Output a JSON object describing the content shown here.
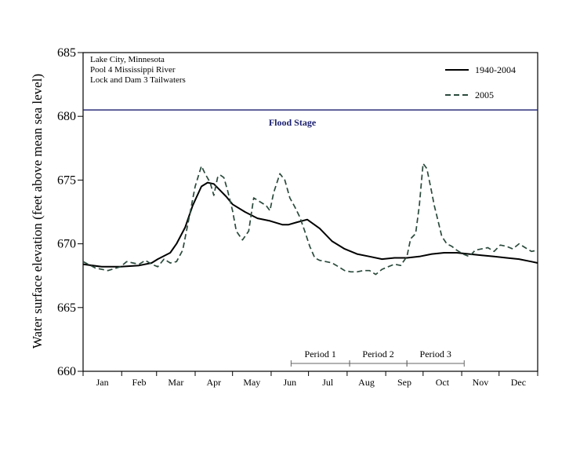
{
  "chart_data": {
    "type": "line",
    "ylabel": "Water surface elevation (feet above mean sea level)",
    "xlabel": "",
    "ylim": [
      660,
      685
    ],
    "yticks": [
      660,
      665,
      670,
      675,
      680,
      685
    ],
    "x_months": [
      "Jan",
      "Feb",
      "Mar",
      "Apr",
      "May",
      "Jun",
      "Jul",
      "Aug",
      "Sep",
      "Oct",
      "Nov",
      "Dec"
    ],
    "xlim_days": [
      0,
      365
    ],
    "grid": false,
    "legend_position": "top-right",
    "info_text": [
      "Lake City, Minnesota",
      "Pool 4 Mississippi River",
      "Lock and Dam 3 Tailwaters"
    ],
    "flood_stage": {
      "value": 680.5,
      "label": "Flood Stage",
      "color": "#1a1f6e"
    },
    "periods": [
      {
        "label": "Period 1",
        "start_day": 167,
        "end_day": 214
      },
      {
        "label": "Period 2",
        "start_day": 214,
        "end_day": 260
      },
      {
        "label": "Period 3",
        "start_day": 260,
        "end_day": 306
      }
    ],
    "series": [
      {
        "name": "1940-2004",
        "color": "#000000",
        "dash": "solid",
        "x": [
          0,
          15,
          30,
          45,
          55,
          60,
          70,
          75,
          82,
          88,
          95,
          100,
          105,
          110,
          115,
          120,
          130,
          140,
          150,
          160,
          165,
          172,
          180,
          190,
          200,
          210,
          220,
          230,
          240,
          250,
          260,
          270,
          280,
          290,
          300,
          310,
          320,
          330,
          340,
          350,
          360,
          365
        ],
        "values": [
          668.4,
          668.2,
          668.2,
          668.3,
          668.5,
          668.8,
          669.3,
          670.0,
          671.3,
          673.0,
          674.5,
          674.8,
          674.7,
          674.2,
          673.7,
          673.1,
          672.5,
          672.0,
          671.8,
          671.5,
          671.5,
          671.7,
          671.9,
          671.2,
          670.2,
          669.6,
          669.2,
          669.0,
          668.8,
          668.9,
          668.9,
          669.0,
          669.2,
          669.3,
          669.3,
          669.2,
          669.1,
          669.0,
          668.9,
          668.8,
          668.6,
          668.5
        ]
      },
      {
        "name": "2005",
        "color": "#2a4a3c",
        "dash": "dashed",
        "x": [
          0,
          10,
          20,
          30,
          35,
          40,
          45,
          50,
          55,
          60,
          65,
          70,
          75,
          80,
          85,
          90,
          95,
          98,
          102,
          105,
          108,
          110,
          113,
          116,
          120,
          123,
          128,
          133,
          137,
          142,
          147,
          150,
          153,
          158,
          162,
          166,
          170,
          174,
          178,
          182,
          186,
          190,
          195,
          200,
          205,
          210,
          215,
          220,
          225,
          230,
          235,
          240,
          245,
          250,
          255,
          260,
          263,
          267,
          270,
          273,
          276,
          279,
          282,
          285,
          288,
          292,
          296,
          300,
          305,
          310,
          315,
          320,
          325,
          330,
          335,
          340,
          345,
          350,
          355,
          360,
          365
        ],
        "values": [
          668.6,
          668.1,
          667.9,
          668.2,
          668.6,
          668.5,
          668.4,
          668.7,
          668.4,
          668.2,
          668.8,
          668.5,
          668.6,
          669.5,
          672.0,
          674.5,
          676.1,
          675.5,
          674.8,
          673.8,
          675.2,
          675.4,
          675.2,
          674.2,
          672.6,
          671.0,
          670.3,
          671.0,
          673.6,
          673.3,
          673.0,
          672.6,
          674.0,
          675.5,
          675.0,
          673.6,
          672.9,
          672.1,
          671.0,
          669.8,
          668.9,
          668.7,
          668.6,
          668.5,
          668.2,
          667.9,
          667.8,
          667.8,
          667.9,
          667.9,
          667.6,
          668.0,
          668.2,
          668.4,
          668.3,
          669.0,
          670.4,
          670.8,
          673.0,
          676.3,
          675.9,
          674.5,
          673.0,
          671.8,
          670.6,
          670.0,
          669.8,
          669.5,
          669.2,
          669.0,
          669.5,
          669.6,
          669.7,
          669.4,
          669.9,
          669.8,
          669.6,
          670.0,
          669.7,
          669.4,
          669.5
        ]
      }
    ]
  }
}
